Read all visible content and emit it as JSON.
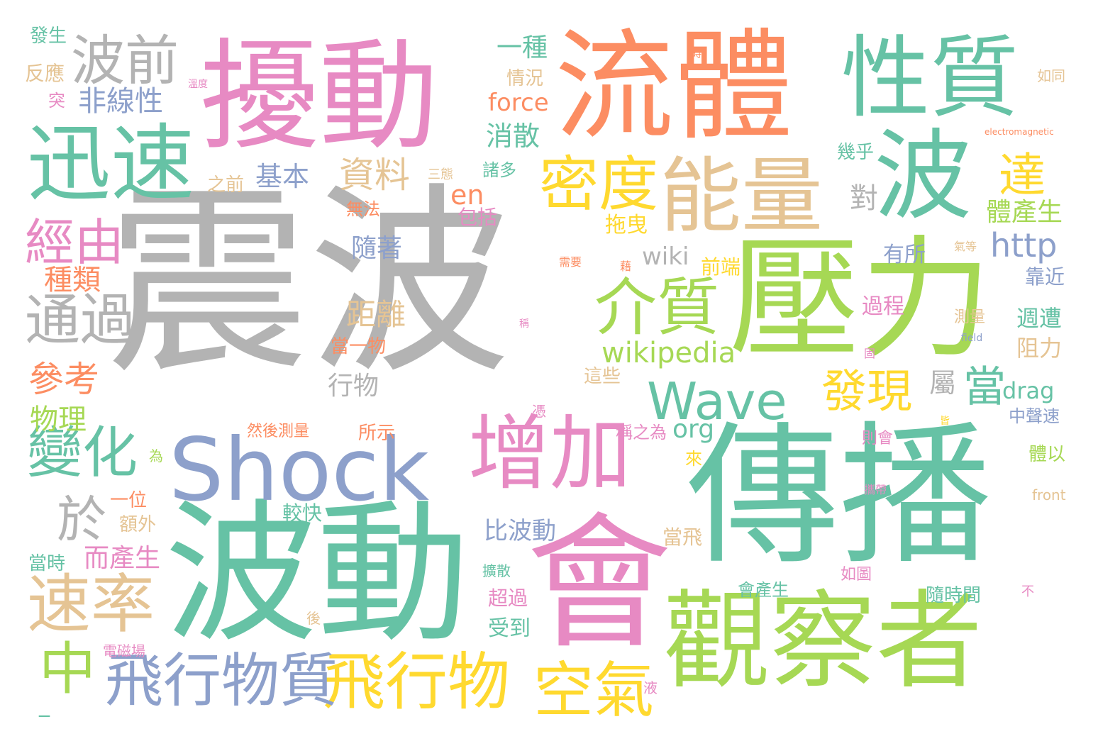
{
  "palette": {
    "gray": "#b3b3b3",
    "green": "#66c2a5",
    "orange": "#fc8d62",
    "blue": "#8da0cb",
    "pink": "#e78ac3",
    "lime": "#a6d854",
    "yellow": "#ffd92f",
    "tan": "#e5c494"
  },
  "words": [
    {
      "text": "震波",
      "color": "gray"
    },
    {
      "text": "傳播",
      "color": "green"
    },
    {
      "text": "波動",
      "color": "green"
    },
    {
      "text": "擾動",
      "color": "pink"
    },
    {
      "text": "流體",
      "color": "orange"
    },
    {
      "text": "壓力",
      "color": "lime"
    },
    {
      "text": "會",
      "color": "pink"
    },
    {
      "text": "觀察者",
      "color": "lime"
    },
    {
      "text": "Shock",
      "color": "blue"
    },
    {
      "text": "性質",
      "color": "green"
    },
    {
      "text": "波",
      "color": "green"
    },
    {
      "text": "能量",
      "color": "tan"
    },
    {
      "text": "增加",
      "color": "pink"
    },
    {
      "text": "迅速",
      "color": "green"
    },
    {
      "text": "飛行物",
      "color": "yellow"
    },
    {
      "text": "飛行物質",
      "color": "blue"
    },
    {
      "text": "空氣",
      "color": "yellow"
    },
    {
      "text": "密度",
      "color": "yellow"
    },
    {
      "text": "介質",
      "color": "lime"
    },
    {
      "text": "Wave",
      "color": "green"
    },
    {
      "text": "速率",
      "color": "tan"
    },
    {
      "text": "變化",
      "color": "green"
    },
    {
      "text": "波前",
      "color": "gray"
    },
    {
      "text": "通過",
      "color": "gray"
    },
    {
      "text": "經由",
      "color": "pink"
    },
    {
      "text": "中",
      "color": "lime"
    },
    {
      "text": "於",
      "color": "gray"
    },
    {
      "text": "達",
      "color": "yellow"
    },
    {
      "text": "發現",
      "color": "yellow"
    },
    {
      "text": "當",
      "color": "green"
    },
    {
      "text": "http",
      "color": "blue"
    },
    {
      "text": "wikipedia",
      "color": "lime"
    },
    {
      "text": "參考",
      "color": "orange"
    },
    {
      "text": "資料",
      "color": "tan"
    },
    {
      "text": "物理",
      "color": "lime"
    },
    {
      "text": "距離",
      "color": "tan"
    },
    {
      "text": "種類",
      "color": "orange"
    },
    {
      "text": "非線性",
      "color": "blue"
    },
    {
      "text": "基本",
      "color": "blue"
    },
    {
      "text": "一種",
      "color": "green"
    },
    {
      "text": "force",
      "color": "orange"
    },
    {
      "text": "消散",
      "color": "green"
    },
    {
      "text": "en",
      "color": "orange"
    },
    {
      "text": "wiki",
      "color": "gray"
    },
    {
      "text": "org",
      "color": "green"
    },
    {
      "text": "對",
      "color": "gray"
    },
    {
      "text": "體產生",
      "color": "lime"
    },
    {
      "text": "拖曳",
      "color": "yellow"
    },
    {
      "text": "隨著",
      "color": "blue"
    },
    {
      "text": "drag",
      "color": "green"
    },
    {
      "text": "過程",
      "color": "pink"
    },
    {
      "text": "週遭",
      "color": "green"
    },
    {
      "text": "阻力",
      "color": "tan"
    },
    {
      "text": "靠近",
      "color": "blue"
    },
    {
      "text": "比波動",
      "color": "blue"
    },
    {
      "text": "而產生",
      "color": "pink"
    },
    {
      "text": "屬",
      "color": "gray"
    },
    {
      "text": "行物",
      "color": "gray"
    },
    {
      "text": "有所",
      "color": "blue"
    },
    {
      "text": "前端",
      "color": "yellow"
    },
    {
      "text": "發生",
      "color": "green"
    },
    {
      "text": "反應",
      "color": "tan"
    },
    {
      "text": "突",
      "color": "pink"
    },
    {
      "text": "情況",
      "color": "tan"
    },
    {
      "text": "之前",
      "color": "tan"
    },
    {
      "text": "諸多",
      "color": "green"
    },
    {
      "text": "包括",
      "color": "pink"
    },
    {
      "text": "無法",
      "color": "orange"
    },
    {
      "text": "幾乎",
      "color": "green"
    },
    {
      "text": "當一物",
      "color": "orange"
    },
    {
      "text": "一位",
      "color": "orange"
    },
    {
      "text": "額外",
      "color": "tan"
    },
    {
      "text": "當時",
      "color": "green"
    },
    {
      "text": "較快",
      "color": "green"
    },
    {
      "text": "當飛",
      "color": "tan"
    },
    {
      "text": "受到",
      "color": "green"
    },
    {
      "text": "超過",
      "color": "pink"
    },
    {
      "text": "隨時間",
      "color": "green"
    },
    {
      "text": "所示",
      "color": "orange"
    },
    {
      "text": "會產生",
      "color": "green"
    },
    {
      "text": "如圖",
      "color": "pink"
    },
    {
      "text": "這些",
      "color": "tan"
    },
    {
      "text": "然後測量",
      "color": "orange"
    },
    {
      "text": "稱之為",
      "color": "pink"
    },
    {
      "text": "則會",
      "color": "pink"
    },
    {
      "text": "中聲速",
      "color": "blue"
    },
    {
      "text": "體以",
      "color": "lime"
    },
    {
      "text": "測量",
      "color": "tan"
    },
    {
      "text": "如同",
      "color": "tan"
    },
    {
      "text": "electromagnetic",
      "color": "orange"
    },
    {
      "text": "field",
      "color": "blue"
    },
    {
      "text": "front",
      "color": "tan"
    },
    {
      "text": "溫度",
      "color": "pink"
    },
    {
      "text": "三態",
      "color": "tan"
    },
    {
      "text": "需要",
      "color": "orange"
    },
    {
      "text": "氣等",
      "color": "tan"
    },
    {
      "text": "來",
      "color": "yellow"
    },
    {
      "text": "為",
      "color": "lime"
    },
    {
      "text": "憑",
      "color": "pink"
    },
    {
      "text": "後",
      "color": "tan"
    },
    {
      "text": "液",
      "color": "pink"
    },
    {
      "text": "擴散",
      "color": "green"
    },
    {
      "text": "電磁場",
      "color": "pink"
    },
    {
      "text": "攜帶",
      "color": "pink"
    },
    {
      "text": "不",
      "color": "pink"
    },
    {
      "text": "皆",
      "color": "yellow"
    },
    {
      "text": "稱",
      "color": "pink"
    },
    {
      "text": "固",
      "color": "pink"
    },
    {
      "text": "藉",
      "color": "orange"
    },
    {
      "text": "時",
      "color": "orange"
    },
    {
      "text": "_",
      "color": "green"
    }
  ]
}
